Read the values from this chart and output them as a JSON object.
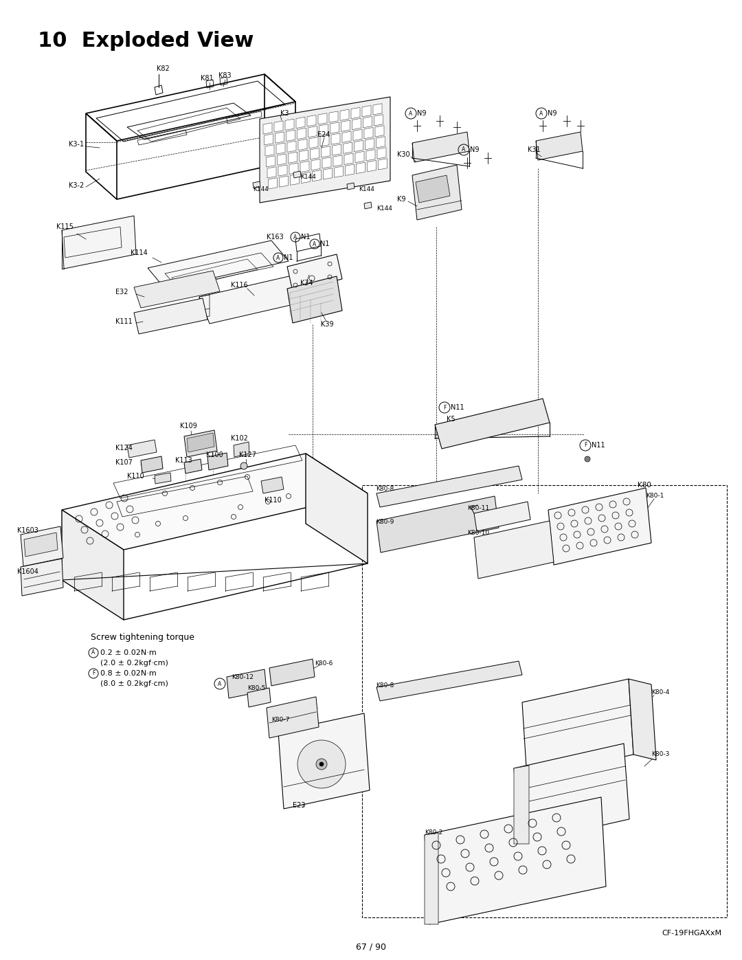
{
  "title": "10  Exploded View",
  "page_number": "67 / 90",
  "model": "CF-19FHGAXxM",
  "background_color": "#ffffff",
  "title_fontsize": 22,
  "title_bold": true,
  "page_num_fontsize": 9,
  "model_fontsize": 8
}
